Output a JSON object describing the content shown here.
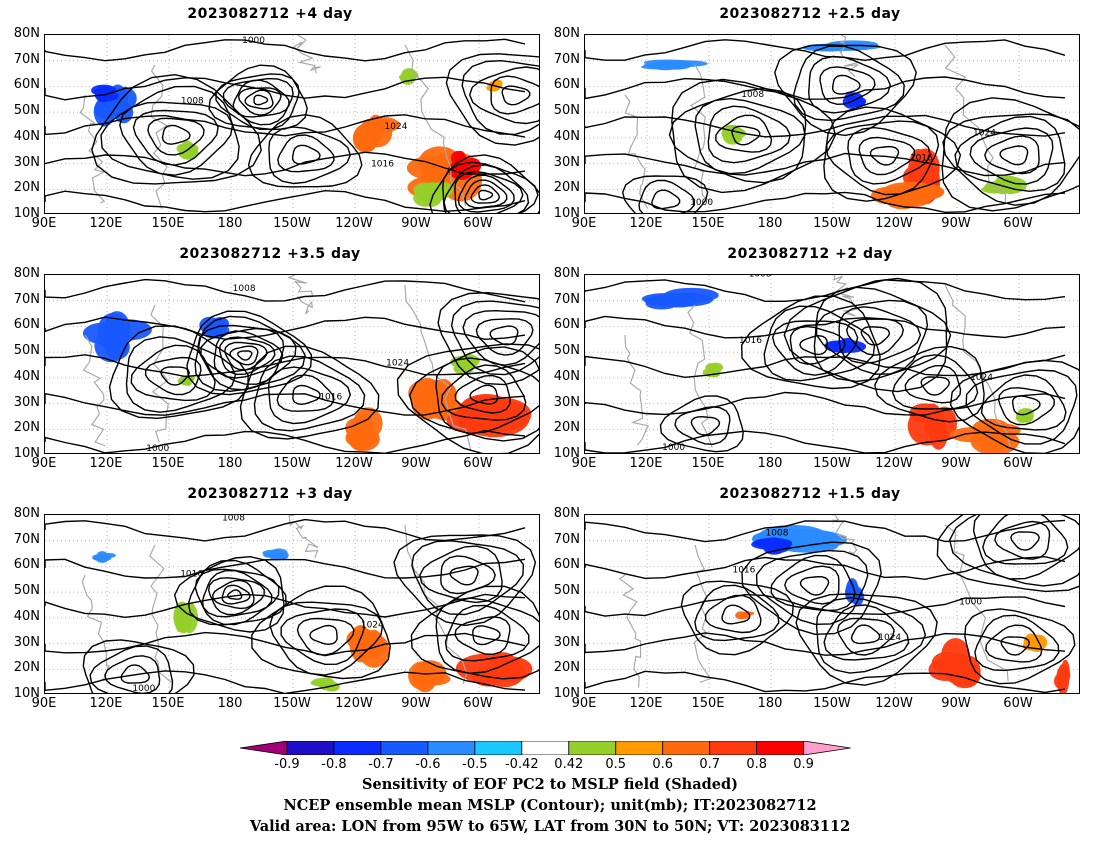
{
  "panels": [
    {
      "title": "2023082712  +4 day"
    },
    {
      "title": "2023082712  +2.5 day"
    },
    {
      "title": "2023082712  +3.5 day"
    },
    {
      "title": "2023082712  +2 day"
    },
    {
      "title": "2023082712  +3 day"
    },
    {
      "title": "2023082712  +1.5 day"
    }
  ],
  "lat_labels": [
    "80N",
    "70N",
    "60N",
    "50N",
    "40N",
    "30N",
    "20N",
    "10N"
  ],
  "lon_labels": [
    "90E",
    "120E",
    "150E",
    "180",
    "150W",
    "120W",
    "90W",
    "60W"
  ],
  "contour_labels": [
    "1000",
    "1008",
    "1016",
    "1024"
  ],
  "colorbar": {
    "labels": [
      "-0.9",
      "-0.8",
      "-0.7",
      "-0.6",
      "-0.5",
      "-0.42",
      "0.42",
      "0.5",
      "0.6",
      "0.7",
      "0.8",
      "0.9"
    ],
    "colors": [
      "#a0007a",
      "#1f0fc8",
      "#0a2cff",
      "#1858ff",
      "#2a8bff",
      "#19c8ff",
      "#ffffff",
      "#95cf2a",
      "#ff9a00",
      "#ff6a10",
      "#ff3a10",
      "#ff0000",
      "#ff9fcf"
    ]
  },
  "caption": {
    "line1": "Sensitivity of EOF PC2 to MSLP field (Shaded)",
    "line2": "NCEP ensemble mean MSLP (Contour); unit(mb); IT:2023082712",
    "line3": "Valid area: LON from 95W to 65W, LAT from 30N to 50N; VT: 2023083112"
  }
}
